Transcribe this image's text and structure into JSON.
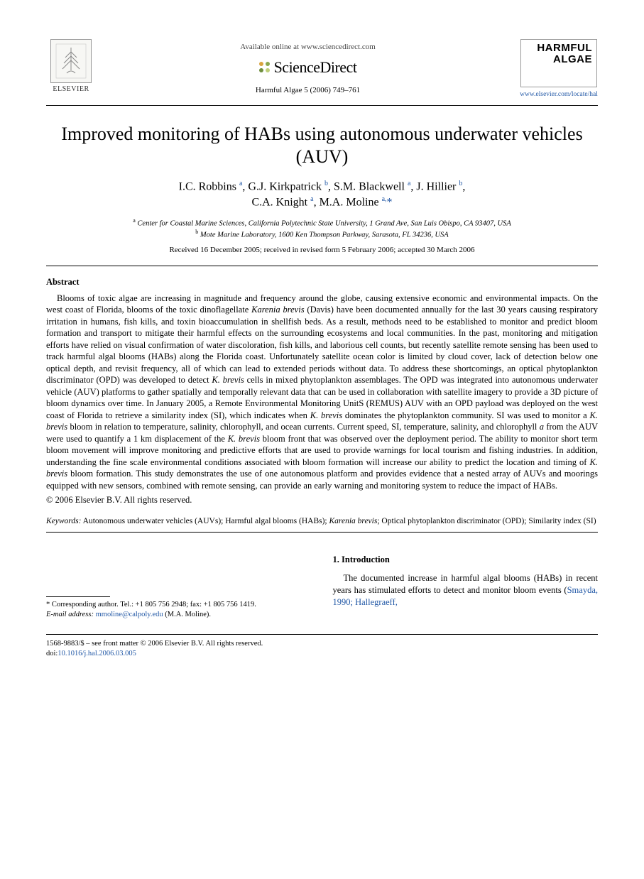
{
  "header": {
    "elsevier_label": "ELSEVIER",
    "available_line": "Available online at www.sciencedirect.com",
    "sd_brand": "ScienceDirect",
    "sd_dot_colors": [
      "#d9a440",
      "#8aa84f",
      "#6f8f3f",
      "#bfcf7a"
    ],
    "citation": "Harmful Algae 5 (2006) 749–761",
    "journal_title_line1": "HARMFUL",
    "journal_title_line2": "ALGAE",
    "journal_url": "www.elsevier.com/locate/hal"
  },
  "title": "Improved monitoring of HABs using autonomous underwater vehicles (AUV)",
  "authors_html": "I.C. Robbins <sup>a</sup>, G.J. Kirkpatrick <sup>b</sup>, S.M. Blackwell <sup>a</sup>, J. Hillier <sup>b</sup>,<br>C.A. Knight <sup>a</sup>, M.A. Moline <sup>a,</sup><span class='ast'>*</span>",
  "affiliations": [
    "Center for Coastal Marine Sciences, California Polytechnic State University, 1 Grand Ave, San Luis Obispo, CA 93407, USA",
    "Mote Marine Laboratory, 1600 Ken Thompson Parkway, Sarasota, FL 34236, USA"
  ],
  "affil_markers": [
    "a",
    "b"
  ],
  "history": "Received 16 December 2005; received in revised form 5 February 2006; accepted 30 March 2006",
  "abstract_heading": "Abstract",
  "abstract": "Blooms of toxic algae are increasing in magnitude and frequency around the globe, causing extensive economic and environmental impacts. On the west coast of Florida, blooms of the toxic dinoflagellate <em>Karenia brevis</em> (Davis) have been documented annually for the last 30 years causing respiratory irritation in humans, fish kills, and toxin bioaccumulation in shellfish beds. As a result, methods need to be established to monitor and predict bloom formation and transport to mitigate their harmful effects on the surrounding ecosystems and local communities. In the past, monitoring and mitigation efforts have relied on visual confirmation of water discoloration, fish kills, and laborious cell counts, but recently satellite remote sensing has been used to track harmful algal blooms (HABs) along the Florida coast. Unfortunately satellite ocean color is limited by cloud cover, lack of detection below one optical depth, and revisit frequency, all of which can lead to extended periods without data. To address these shortcomings, an optical phytoplankton discriminator (OPD) was developed to detect <em>K. brevis</em> cells in mixed phytoplankton assemblages. The OPD was integrated into autonomous underwater vehicle (AUV) platforms to gather spatially and temporally relevant data that can be used in collaboration with satellite imagery to provide a 3D picture of bloom dynamics over time. In January 2005, a Remote Environmental Monitoring UnitS (REMUS) AUV with an OPD payload was deployed on the west coast of Florida to retrieve a similarity index (SI), which indicates when <em>K. brevis</em> dominates the phytoplankton community. SI was used to monitor a <em>K. brevis</em> bloom in relation to temperature, salinity, chlorophyll, and ocean currents. Current speed, SI, temperature, salinity, and chlorophyll <em>a</em> from the AUV were used to quantify a 1 km displacement of the <em>K. brevis</em> bloom front that was observed over the deployment period. The ability to monitor short term bloom movement will improve monitoring and predictive efforts that are used to provide warnings for local tourism and fishing industries. In addition, understanding the fine scale environmental conditions associated with bloom formation will increase our ability to predict the location and timing of <em>K. brevis</em> bloom formation. This study demonstrates the use of one autonomous platform and provides evidence that a nested array of AUVs and moorings equipped with new sensors, combined with remote sensing, can provide an early warning and monitoring system to reduce the impact of HABs.",
  "copyright": "© 2006 Elsevier B.V. All rights reserved.",
  "keywords_label": "Keywords:",
  "keywords": "Autonomous underwater vehicles (AUVs); Harmful algal blooms (HABs); <em>Karenia brevis</em>; Optical phytoplankton discriminator (OPD); Similarity index (SI)",
  "footnote": {
    "corr": "* Corresponding author. Tel.: +1 805 756 2948; fax: +1 805 756 1419.",
    "email_label": "E-mail address:",
    "email": "mmoline@calpoly.edu",
    "email_author": "(M.A. Moline)."
  },
  "intro": {
    "heading": "1. Introduction",
    "paragraph_html": "The documented increase in harmful algal blooms (HABs) in recent years has stimulated efforts to detect and monitor bloom events (<span class='cite-link'>Smayda, 1990; Hallegraeff,</span>"
  },
  "footer": {
    "front_matter": "1568-9883/$ – see front matter © 2006 Elsevier B.V. All rights reserved.",
    "doi_label": "doi:",
    "doi": "10.1016/j.hal.2006.03.005"
  },
  "colors": {
    "link": "#2258a6",
    "text": "#000000",
    "rule": "#000000"
  }
}
